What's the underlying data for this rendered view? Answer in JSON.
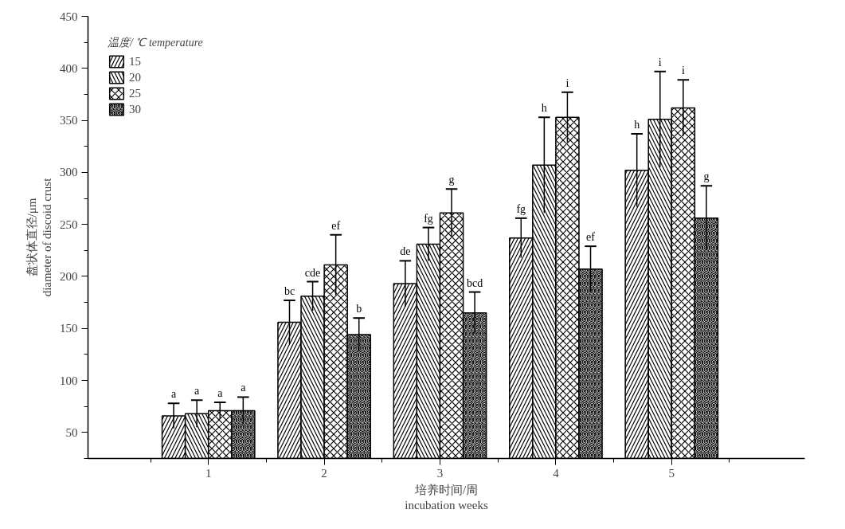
{
  "chart_data": {
    "type": "bar",
    "categories": [
      "1",
      "2",
      "3",
      "4",
      "5"
    ],
    "xlabel": "培养时间/周\nincubation weeks",
    "ylabel": "盘状体直径/μm\ndiameter of discoid crust",
    "legend_title": "温度/ ℃ temperature",
    "ylim": [
      25,
      450
    ],
    "yticks": [
      50,
      100,
      150,
      200,
      250,
      300,
      350,
      400,
      450
    ],
    "grid": false,
    "legend": "top left",
    "series": [
      {
        "name": "15",
        "color": "#ffffff",
        "values": [
          66,
          156,
          193,
          237,
          302
        ],
        "errors": [
          12,
          21,
          22,
          19,
          35
        ]
      },
      {
        "name": "20",
        "color": "#ffffff",
        "values": [
          68,
          181,
          231,
          307,
          351
        ],
        "errors": [
          13,
          14,
          16,
          46,
          46
        ]
      },
      {
        "name": "25",
        "color": "#ffffff",
        "values": [
          71,
          211,
          261,
          353,
          362
        ],
        "errors": [
          8,
          29,
          23,
          24,
          27
        ]
      },
      {
        "name": "30",
        "color": "#ffffff",
        "values": [
          71,
          144,
          165,
          207,
          256
        ],
        "errors": [
          13,
          16,
          20,
          22,
          31
        ]
      }
    ],
    "annotations": [
      "a",
      "a",
      "a",
      "a",
      "bc",
      "cde",
      "ef",
      "b",
      "de",
      "fg",
      "g",
      "bcd",
      "fg",
      "h",
      "i",
      "ef",
      "h",
      "i",
      "i",
      "g"
    ]
  }
}
